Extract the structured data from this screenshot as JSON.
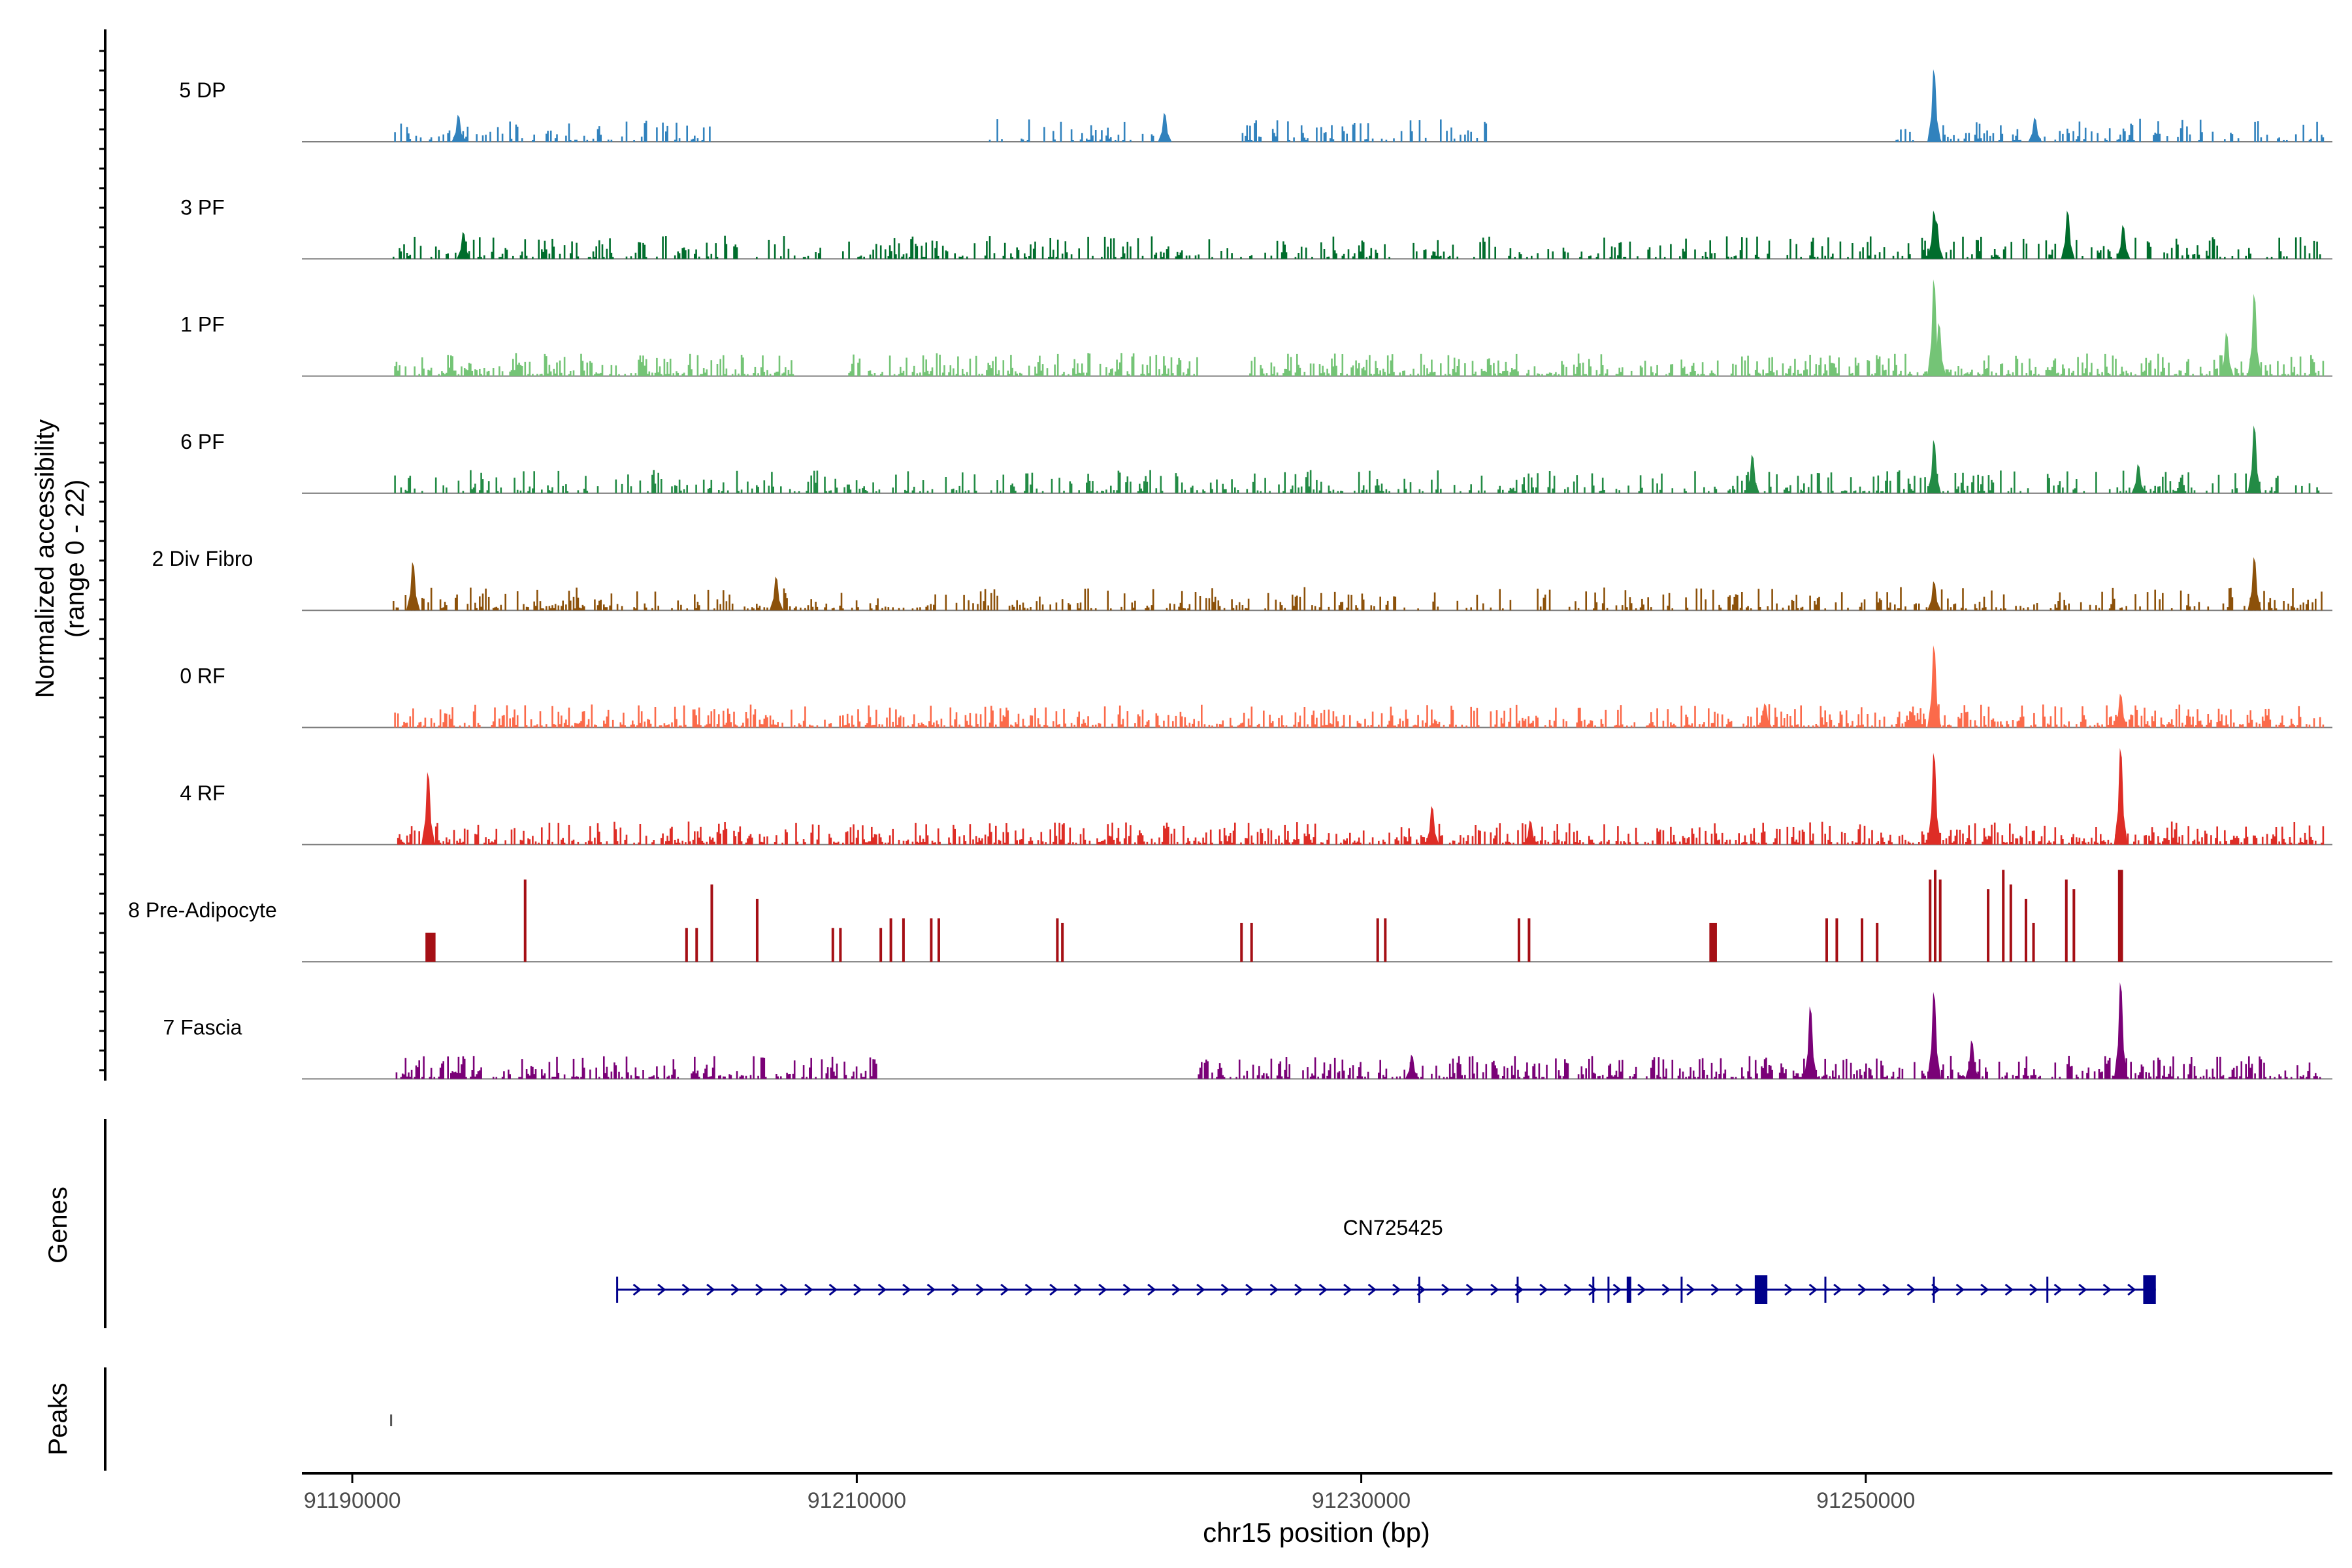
{
  "chart_data": {
    "type": "coverage-track",
    "ylabel_line1": "Normalized accessibility",
    "ylabel_line2": "(range 0 - 22)",
    "y_range": [
      0,
      22
    ],
    "xlabel": "chr15 position (bp)",
    "x_range": [
      91188000,
      91268500
    ],
    "x_ticks": [
      91190000,
      91210000,
      91230000,
      91250000
    ],
    "x_tick_labels": [
      "91190000",
      "91210000",
      "91230000",
      "91250000"
    ],
    "data_range": [
      91191600,
      91268100
    ],
    "tracks": [
      {
        "name": "5 DP",
        "color": "#3182bd",
        "style": "sparse-med",
        "gaps": [
          [
            91204200,
            91215000
          ],
          [
            91222000,
            91224700
          ],
          [
            91235000,
            91250800
          ]
        ],
        "peaks": [
          [
            91252700,
            0.75
          ],
          [
            91194200,
            0.28
          ],
          [
            91222200,
            0.3
          ],
          [
            91256700,
            0.25
          ]
        ]
      },
      {
        "name": "3 PF",
        "color": "#006d2c",
        "style": "sparse-med",
        "gaps": [],
        "peaks": [
          [
            91252700,
            0.5
          ],
          [
            91258000,
            0.5
          ],
          [
            91252800,
            0.4
          ],
          [
            91194400,
            0.28
          ],
          [
            91260200,
            0.35
          ]
        ]
      },
      {
        "name": "1 PF",
        "color": "#74c476",
        "style": "dense",
        "gaps": [
          [
            91207500,
            91209500
          ],
          [
            91223500,
            91225500
          ]
        ],
        "peaks": [
          [
            91252700,
            1.0
          ],
          [
            91265400,
            0.85
          ],
          [
            91264300,
            0.45
          ],
          [
            91252900,
            0.55
          ]
        ]
      },
      {
        "name": "6 PF",
        "color": "#238b45",
        "style": "sparse-med",
        "gaps": [],
        "peaks": [
          [
            91265400,
            0.7
          ],
          [
            91252700,
            0.55
          ],
          [
            91245500,
            0.4
          ],
          [
            91260800,
            0.3
          ]
        ]
      },
      {
        "name": "2 Div Fibro",
        "color": "#8c510a",
        "style": "sparse-med",
        "gaps": [],
        "peaks": [
          [
            91192400,
            0.5
          ],
          [
            91265400,
            0.55
          ],
          [
            91206800,
            0.35
          ],
          [
            91252700,
            0.3
          ]
        ]
      },
      {
        "name": "0 RF",
        "color": "#fb6a4a",
        "style": "dense",
        "gaps": [],
        "peaks": [
          [
            91252700,
            0.85
          ],
          [
            91260100,
            0.35
          ],
          [
            91246000,
            0.25
          ]
        ]
      },
      {
        "name": "4 RF",
        "color": "#de2d26",
        "style": "dense",
        "gaps": [],
        "peaks": [
          [
            91252700,
            0.95
          ],
          [
            91260100,
            1.0
          ],
          [
            91193000,
            0.75
          ],
          [
            91232800,
            0.4
          ],
          [
            91236700,
            0.25
          ]
        ]
      },
      {
        "name": "8 Pre-Adipocyte",
        "color": "#a50f15",
        "style": "blocks",
        "gaps": [],
        "peaks": []
      },
      {
        "name": "7 Fascia",
        "color": "#7a0177",
        "style": "dense",
        "gaps": [
          [
            91210800,
            91223400
          ]
        ],
        "peaks": [
          [
            91260100,
            1.0
          ],
          [
            91252700,
            0.9
          ],
          [
            91247800,
            0.75
          ],
          [
            91254200,
            0.4
          ],
          [
            91232000,
            0.25
          ]
        ]
      }
    ],
    "pre_adipocyte_blocks": [
      [
        91192900,
        91193300,
        0.3
      ],
      [
        91196800,
        91196900,
        0.85
      ],
      [
        91203200,
        91203300,
        0.35
      ],
      [
        91203600,
        91203700,
        0.35
      ],
      [
        91204200,
        91204300,
        0.8
      ],
      [
        91206000,
        91206100,
        0.65
      ],
      [
        91209000,
        91209100,
        0.35
      ],
      [
        91209300,
        91209400,
        0.35
      ],
      [
        91210900,
        91211000,
        0.35
      ],
      [
        91211300,
        91211400,
        0.45
      ],
      [
        91211800,
        91211900,
        0.45
      ],
      [
        91212900,
        91213000,
        0.45
      ],
      [
        91213200,
        91213300,
        0.45
      ],
      [
        91217900,
        91218000,
        0.45
      ],
      [
        91218100,
        91218200,
        0.4
      ],
      [
        91225200,
        91225300,
        0.4
      ],
      [
        91225600,
        91225700,
        0.4
      ],
      [
        91230600,
        91230700,
        0.45
      ],
      [
        91230900,
        91231000,
        0.45
      ],
      [
        91236200,
        91236300,
        0.45
      ],
      [
        91236600,
        91236700,
        0.45
      ],
      [
        91243800,
        91244100,
        0.4
      ],
      [
        91248400,
        91248500,
        0.45
      ],
      [
        91248800,
        91248900,
        0.45
      ],
      [
        91249800,
        91249900,
        0.45
      ],
      [
        91250400,
        91250500,
        0.4
      ],
      [
        91252500,
        91252600,
        0.85
      ],
      [
        91252700,
        91252800,
        0.95
      ],
      [
        91252900,
        91253000,
        0.85
      ],
      [
        91254800,
        91254900,
        0.75
      ],
      [
        91255400,
        91255500,
        0.95
      ],
      [
        91255700,
        91255800,
        0.8
      ],
      [
        91256300,
        91256400,
        0.65
      ],
      [
        91256600,
        91256700,
        0.4
      ],
      [
        91257900,
        91258000,
        0.85
      ],
      [
        91258200,
        91258300,
        0.75
      ],
      [
        91260000,
        91260200,
        0.95
      ]
    ],
    "genes": [
      {
        "name": "CN725425",
        "start": 91200500,
        "end": 91261500,
        "strand": "+",
        "exons": [
          [
            91200500,
            91200600,
            "thin"
          ],
          [
            91232300,
            91232400,
            "thin"
          ],
          [
            91236200,
            91236300,
            "thin"
          ],
          [
            91239200,
            91239300,
            "thin"
          ],
          [
            91239800,
            91239900,
            "thin"
          ],
          [
            91240600,
            91240800,
            "thick"
          ],
          [
            91242700,
            91242800,
            "thin"
          ],
          [
            91245600,
            91246100,
            "block"
          ],
          [
            91248400,
            91248500,
            "thin"
          ],
          [
            91252700,
            91252800,
            "thin"
          ],
          [
            91257200,
            91257300,
            "thin"
          ],
          [
            91261000,
            91261500,
            "block"
          ]
        ],
        "color": "#00008b"
      }
    ],
    "peaks": [
      [
        91191500,
        91191600
      ]
    ],
    "panel_labels": {
      "genes": "Genes",
      "peaks": "Peaks"
    }
  }
}
